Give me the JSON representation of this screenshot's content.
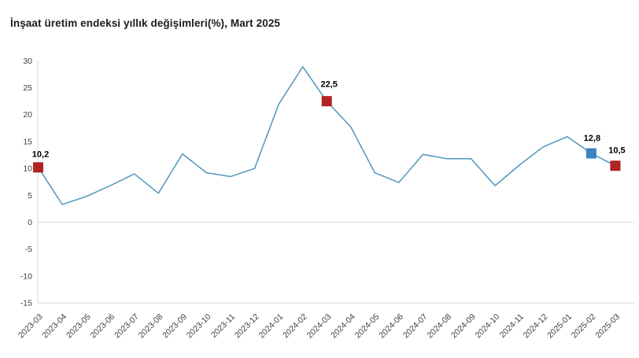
{
  "chart_data": {
    "type": "line",
    "title": "İnşaat üretim endeksi yıllık değişimleri(%), Mart 2025",
    "xlabel": "",
    "ylabel": "",
    "categories": [
      "2023-03",
      "2023-04",
      "2023-05",
      "2023-06",
      "2023-07",
      "2023-08",
      "2023-09",
      "2023-10",
      "2023-11",
      "2023-12",
      "2024-01",
      "2024-02",
      "2024-03",
      "2024-04",
      "2024-05",
      "2024-06",
      "2024-07",
      "2024-08",
      "2024-09",
      "2024-10",
      "2024-11",
      "2024-12",
      "2025-01",
      "2025-02",
      "2025-03"
    ],
    "values": [
      10.2,
      3.3,
      4.8,
      6.8,
      9.0,
      5.4,
      12.7,
      9.2,
      8.5,
      10.0,
      21.9,
      28.9,
      22.5,
      17.7,
      9.2,
      7.4,
      12.6,
      11.8,
      11.8,
      6.8,
      10.6,
      14.0,
      15.9,
      12.8,
      10.5
    ],
    "ylim": [
      -15,
      30
    ],
    "yticks": [
      30,
      25,
      20,
      15,
      10,
      5,
      0,
      -5,
      -10,
      -15
    ],
    "grid": "horizontal lines at 0 and -15 only, vertical axis line at left",
    "legend": "none",
    "annotated_points": [
      {
        "category": "2023-03",
        "value": 10.2,
        "label": "10,2",
        "marker": "red"
      },
      {
        "category": "2024-03",
        "value": 22.5,
        "label": "22,5",
        "marker": "red"
      },
      {
        "category": "2025-02",
        "value": 12.8,
        "label": "12,8",
        "marker": "blue"
      },
      {
        "category": "2025-03",
        "value": 10.5,
        "label": "10,5",
        "marker": "red"
      }
    ]
  },
  "colors": {
    "line": "#4f97bd",
    "marker_red": "#b02423",
    "marker_blue": "#3c83c4",
    "grid": "#d9d9d9",
    "axis_text": "#404040",
    "title_text": "#1c1c1c",
    "label_text": "#000000"
  }
}
